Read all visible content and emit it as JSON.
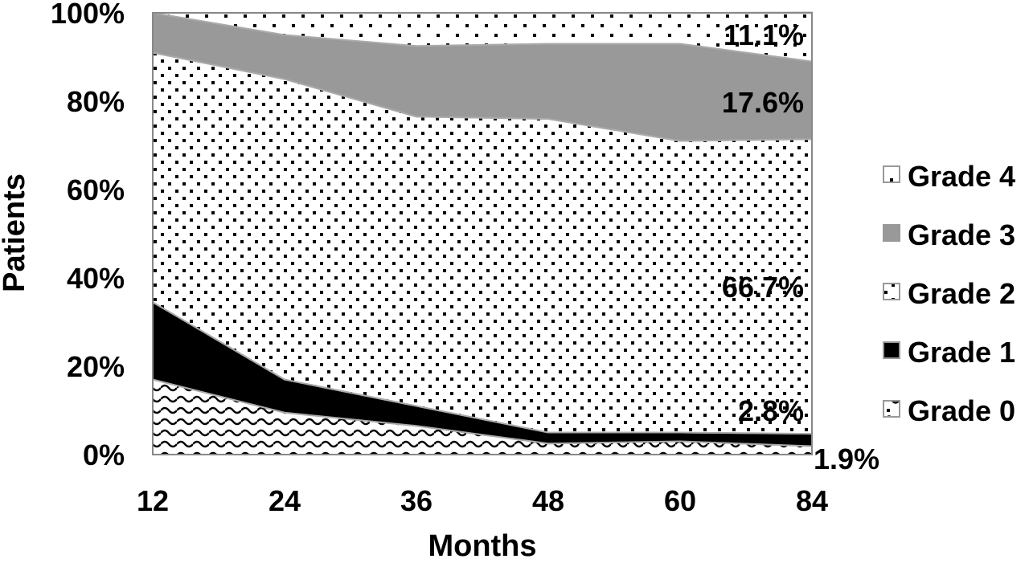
{
  "chart_data": {
    "type": "area",
    "stacked": true,
    "percent": true,
    "title": "",
    "xlabel": "Months",
    "ylabel": "Patients",
    "x": [
      12,
      24,
      36,
      48,
      60,
      84
    ],
    "x_tick_labels": [
      "12",
      "24",
      "36",
      "48",
      "60",
      "84"
    ],
    "y_tick_labels": [
      "0%",
      "20%",
      "40%",
      "60%",
      "80%",
      "100%"
    ],
    "ylim": [
      0,
      100
    ],
    "grid": false,
    "legend_position": "right",
    "series": [
      {
        "name": "Grade 0",
        "pattern": "wave",
        "color": "#ffffff",
        "values": [
          17,
          9.5,
          6.5,
          2.5,
          3,
          1.9
        ]
      },
      {
        "name": "Grade 1",
        "pattern": "solid",
        "color": "#000000",
        "values": [
          17.5,
          7.5,
          4.5,
          2.5,
          2,
          2.8
        ]
      },
      {
        "name": "Grade 2",
        "pattern": "dots",
        "color": "#ffffff",
        "values": [
          56.5,
          68,
          65.5,
          71,
          66,
          66.7
        ]
      },
      {
        "name": "Grade 3",
        "pattern": "solid",
        "color": "#999999",
        "values": [
          9,
          10,
          16,
          17,
          22,
          17.6
        ]
      },
      {
        "name": "Grade 4",
        "pattern": "sparse-dots",
        "color": "#ffffff",
        "values": [
          0,
          5,
          7.5,
          7,
          7,
          11.1
        ]
      }
    ],
    "annotations": [
      "11.1%",
      "17.6%",
      "66.7%",
      "2.8%",
      "1.9%"
    ],
    "legend_order": [
      "Grade 4",
      "Grade 3",
      "Grade 2",
      "Grade 1",
      "Grade 0"
    ]
  }
}
